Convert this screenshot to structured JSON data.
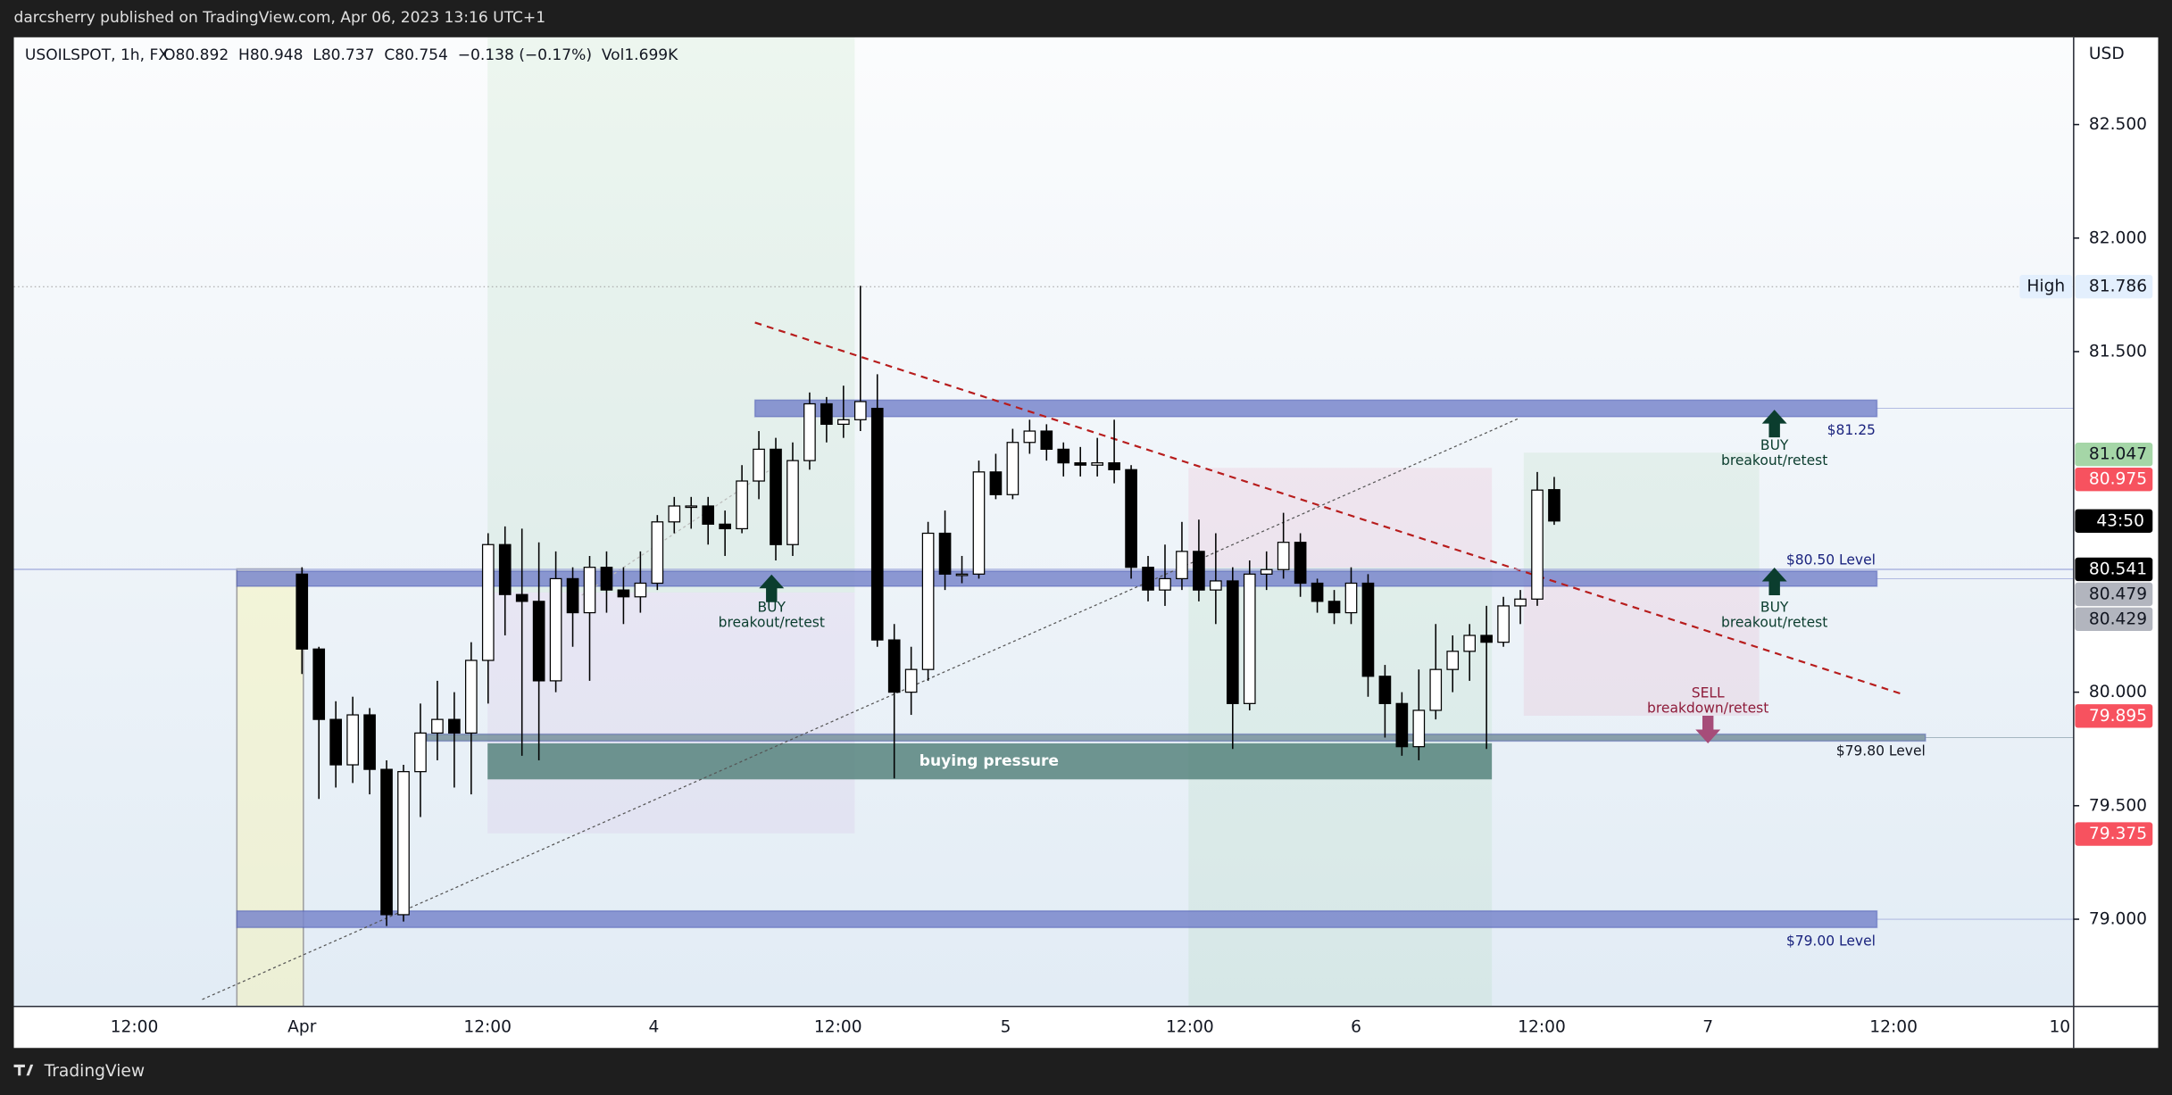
{
  "top_bar": {
    "text": "darcsherry published on TradingView.com, Apr 06, 2023 13:16 UTC+1"
  },
  "footer": {
    "brand": "TradingView"
  },
  "chart_data": {
    "type": "candlestick",
    "legend_text": {
      "symbol": "USOILSPOT, 1h, FX",
      "quote": "O80.892  H80.948  L80.737  C80.754  −0.138 (−0.17%)  Vol1.699K"
    },
    "currency": "USD",
    "categories": [
      null,
      null,
      null,
      null,
      null,
      null,
      null,
      null,
      null,
      null,
      null,
      null,
      null,
      null,
      null,
      null,
      null,
      null,
      null,
      null,
      null,
      null,
      null,
      null,
      null,
      null,
      null,
      null,
      null,
      null,
      null,
      null,
      null,
      null,
      null,
      null,
      null,
      null,
      null,
      null,
      null,
      null,
      null,
      null,
      null,
      null,
      null,
      null,
      null,
      null,
      null,
      null,
      null,
      null,
      null,
      null,
      null,
      null,
      null,
      null,
      null,
      null,
      null,
      null,
      null,
      null,
      null,
      null,
      null,
      null,
      null,
      null,
      null,
      null,
      null
    ],
    "open": [
      80.52,
      80.19,
      79.88,
      79.68,
      79.9,
      79.66,
      79.02,
      79.65,
      79.82,
      79.88,
      79.82,
      80.14,
      80.65,
      80.43,
      80.4,
      80.05,
      80.5,
      80.35,
      80.55,
      80.45,
      80.42,
      80.48,
      80.75,
      80.82,
      80.82,
      80.74,
      80.72,
      80.93,
      81.07,
      80.65,
      81.02,
      81.27,
      81.18,
      81.2,
      81.25,
      80.23,
      80.0,
      80.1,
      80.7,
      80.52,
      80.52,
      80.97,
      80.87,
      81.1,
      81.15,
      81.07,
      81.01,
      81.0,
      81.01,
      80.98,
      80.55,
      80.45,
      80.5,
      80.62,
      80.45,
      80.49,
      79.95,
      80.52,
      80.54,
      80.66,
      80.48,
      80.4,
      80.35,
      80.48,
      80.07,
      79.95,
      79.76,
      79.92,
      80.1,
      80.18,
      80.25,
      80.22,
      80.38,
      80.41,
      80.892
    ],
    "high": [
      80.55,
      80.2,
      79.96,
      79.98,
      79.93,
      79.7,
      79.68,
      79.95,
      80.05,
      80.0,
      80.22,
      80.7,
      80.73,
      80.72,
      80.66,
      80.62,
      80.55,
      80.6,
      80.62,
      80.55,
      80.62,
      80.78,
      80.86,
      80.86,
      80.86,
      80.8,
      81.0,
      81.15,
      81.12,
      81.1,
      81.32,
      81.3,
      81.35,
      81.79,
      81.4,
      80.3,
      80.2,
      80.75,
      80.8,
      80.6,
      81.02,
      81.05,
      81.16,
      81.2,
      81.18,
      81.1,
      81.08,
      81.12,
      81.2,
      81.0,
      80.6,
      80.65,
      80.75,
      80.76,
      80.7,
      80.55,
      80.58,
      80.62,
      80.79,
      80.7,
      80.5,
      80.45,
      80.55,
      80.52,
      80.12,
      80.0,
      80.1,
      80.3,
      80.25,
      80.3,
      80.38,
      80.42,
      80.45,
      80.97,
      80.948
    ],
    "low": [
      80.08,
      79.53,
      79.58,
      79.6,
      79.55,
      78.97,
      78.99,
      79.45,
      79.7,
      79.58,
      79.55,
      79.95,
      80.25,
      79.72,
      79.7,
      80.0,
      80.2,
      80.05,
      80.35,
      80.3,
      80.35,
      80.45,
      80.7,
      80.72,
      80.65,
      80.6,
      80.7,
      80.85,
      80.58,
      80.6,
      80.98,
      81.1,
      81.12,
      81.15,
      80.2,
      79.62,
      79.9,
      80.05,
      80.45,
      80.48,
      80.5,
      80.85,
      80.85,
      81.05,
      81.02,
      80.95,
      80.95,
      80.95,
      80.92,
      80.5,
      80.4,
      80.38,
      80.45,
      80.4,
      80.3,
      79.75,
      79.92,
      80.45,
      80.5,
      80.42,
      80.35,
      80.3,
      80.3,
      79.98,
      79.8,
      79.72,
      79.7,
      79.88,
      80.0,
      80.05,
      79.75,
      80.2,
      80.3,
      80.38,
      80.737
    ],
    "close": [
      80.19,
      79.88,
      79.68,
      79.9,
      79.66,
      79.02,
      79.65,
      79.82,
      79.88,
      79.82,
      80.14,
      80.65,
      80.43,
      80.4,
      80.05,
      80.5,
      80.35,
      80.55,
      80.45,
      80.42,
      80.48,
      80.75,
      80.82,
      80.82,
      80.74,
      80.72,
      80.93,
      81.07,
      80.65,
      81.02,
      81.27,
      81.18,
      81.2,
      81.28,
      80.23,
      80.0,
      80.1,
      80.7,
      80.52,
      80.52,
      80.97,
      80.87,
      81.1,
      81.15,
      81.07,
      81.01,
      81.0,
      81.01,
      80.98,
      80.55,
      80.45,
      80.5,
      80.62,
      80.45,
      80.49,
      79.95,
      80.52,
      80.54,
      80.66,
      80.48,
      80.4,
      80.35,
      80.48,
      80.07,
      79.95,
      79.76,
      79.92,
      80.1,
      80.18,
      80.25,
      80.22,
      80.38,
      80.41,
      80.89,
      80.754
    ],
    "up_color": "#ffffff",
    "down_color": "#000000",
    "ylim": [
      78.616,
      82.884
    ],
    "yticks": [
      {
        "value": 79,
        "label": "79.000"
      },
      {
        "value": 79.5,
        "label": "79.500"
      },
      {
        "value": 80,
        "label": "80.000"
      },
      {
        "value": 81.5,
        "label": "81.500"
      },
      {
        "value": 82,
        "label": "82.000"
      },
      {
        "value": 82.5,
        "label": "82.500"
      }
    ],
    "grid": false,
    "x_labels": [
      "12:00",
      "Apr",
      "12:00",
      "4",
      "12:00",
      "5",
      "12:00",
      "6",
      "12:00",
      "7",
      "12:00",
      "10"
    ],
    "levels": [
      {
        "value": 81.25,
        "label": "$81.25",
        "color": "#7986cb"
      },
      {
        "value": 80.5,
        "label": "$80.50 Level",
        "color": "#7986cb"
      },
      {
        "value": 79.8,
        "label": "$79.80 Level",
        "color": "#78909c"
      },
      {
        "value": 79,
        "label": "$79.00 Level",
        "color": "#7986cb"
      }
    ],
    "zone_label": "buying pressure",
    "signals": [
      {
        "label": "BUY",
        "note": "breakout/retest"
      },
      {
        "label": "BUY",
        "note": "breakout/retest"
      },
      {
        "label": "BUY",
        "note": "breakout/retest"
      },
      {
        "label": "SELL",
        "note": "breakdown/retest"
      }
    ],
    "high_label": "High",
    "price_badges": [
      {
        "value": 81.786,
        "color": "#e3effd",
        "text_color": "#131722"
      },
      {
        "value": 81.047,
        "color": "#a5d6a7",
        "text_color": "#131722"
      },
      {
        "value": 80.975,
        "color": "#f7525f",
        "text_color": "#ffffff"
      },
      {
        "value": 80.541,
        "color": "#000000",
        "text_color": "#ffffff"
      },
      {
        "value": 80.479,
        "color": "#b2b5be",
        "text_color": "#131722"
      },
      {
        "value": 80.429,
        "color": "#b2b5be",
        "text_color": "#131722"
      },
      {
        "value": 79.895,
        "color": "#f7525f",
        "text_color": "#ffffff"
      },
      {
        "value": 79.375,
        "color": "#f7525f",
        "text_color": "#ffffff"
      }
    ],
    "countdown": "43:50"
  }
}
